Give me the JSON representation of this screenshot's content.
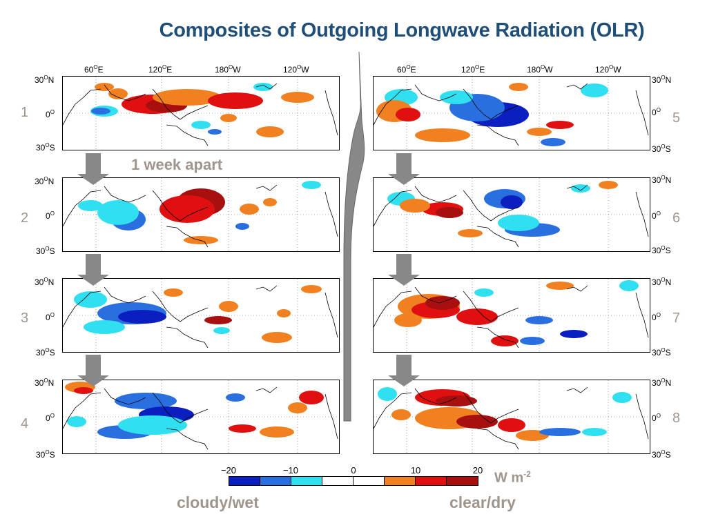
{
  "title": "Composites of Outgoing Longwave Radiation (OLR)",
  "annotation": "1 week apart",
  "lon_labels": [
    "60",
    "E",
    "120",
    "E",
    "180",
    "W",
    "120",
    "W"
  ],
  "lat_labels": {
    "n": "30",
    "n_suffix": "N",
    "eq": "0",
    "s": "30",
    "s_suffix": "S",
    "deg": "O"
  },
  "panel_numbers": [
    "1",
    "2",
    "3",
    "4",
    "5",
    "6",
    "7",
    "8"
  ],
  "colorbar": {
    "ticks": [
      "−20",
      "−10",
      "0",
      "10",
      "20"
    ],
    "colors": [
      "#0a1fbf",
      "#2a6fe0",
      "#30e0f0",
      "#ffffff",
      "#ffffff",
      "#f08020",
      "#e01010",
      "#a81010"
    ],
    "unit": "W m",
    "unit_exp": "-2"
  },
  "legend": {
    "wet": "cloudy/wet",
    "dry": "clear/dry"
  },
  "palette": {
    "deep_blue": "#0a1fbf",
    "blue": "#2a6fe0",
    "cyan": "#30e0f0",
    "orange": "#f08020",
    "red": "#e01010",
    "dark_red": "#a81010"
  }
}
